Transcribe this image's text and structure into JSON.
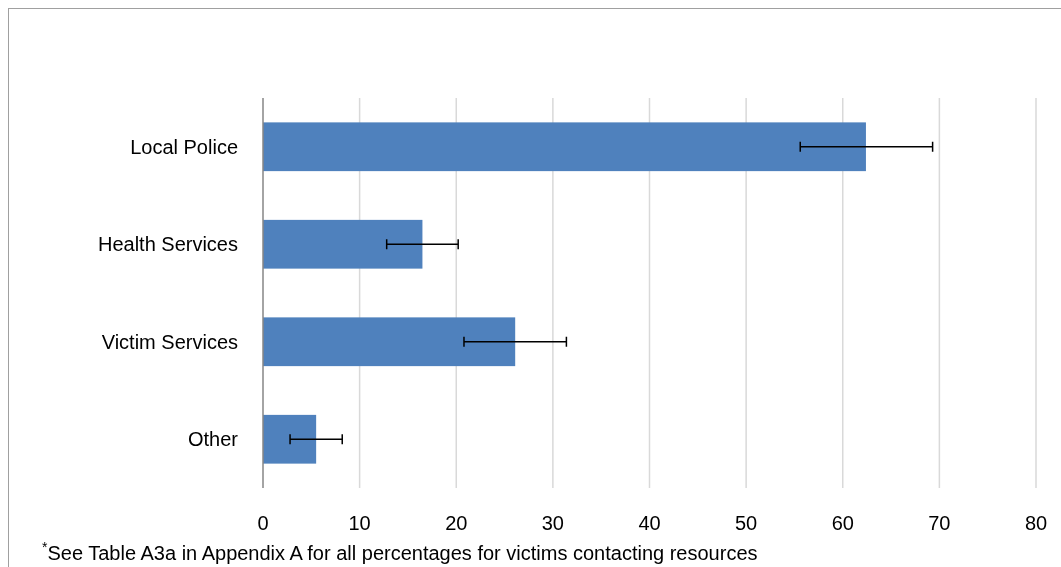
{
  "chart_data": {
    "type": "bar",
    "orientation": "horizontal",
    "categories": [
      "Local Police",
      "Health Services",
      "Victim Services",
      "Other"
    ],
    "values": [
      62.4,
      16.5,
      26.1,
      5.5
    ],
    "errors": [
      [
        55.6,
        69.3
      ],
      [
        12.8,
        20.2
      ],
      [
        20.8,
        31.4
      ],
      [
        2.8,
        8.2
      ]
    ],
    "color": "#4f81bd",
    "xlim": [
      0,
      80
    ],
    "xticks": [
      0,
      10,
      20,
      30,
      40,
      50,
      60,
      70,
      80
    ],
    "grid": "x",
    "annotations": [
      "$^{*}$See Table A3a in Appendix A for all percentages for victims contacting resources"
    ]
  }
}
